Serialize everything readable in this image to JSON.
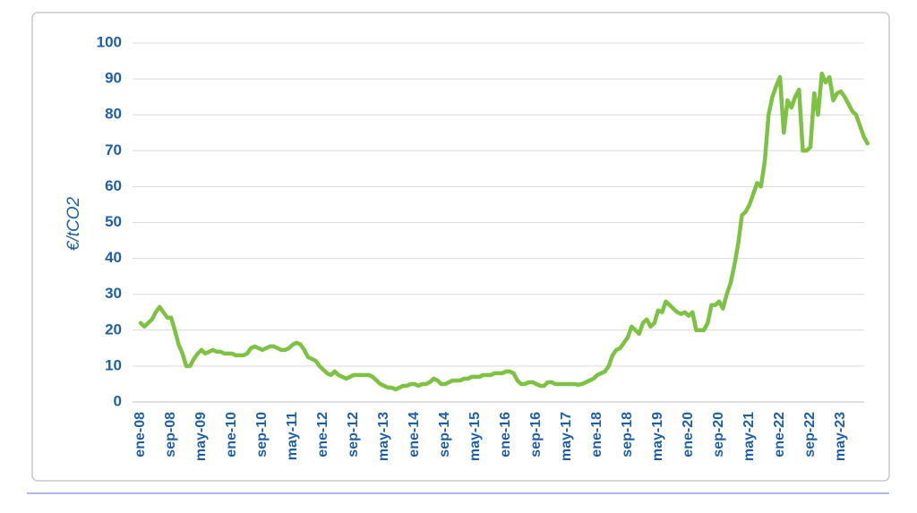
{
  "chart_data": {
    "type": "line",
    "y_label": "€/tCO2",
    "categories": [
      "ene-08",
      null,
      null,
      null,
      null,
      null,
      null,
      null,
      "sep-08",
      null,
      null,
      null,
      null,
      null,
      null,
      null,
      "may-09",
      null,
      null,
      null,
      null,
      null,
      null,
      null,
      "ene-10",
      null,
      null,
      null,
      null,
      null,
      null,
      null,
      "sep-10",
      null,
      null,
      null,
      null,
      null,
      null,
      null,
      "may-11",
      null,
      null,
      null,
      null,
      null,
      null,
      null,
      "ene-12",
      null,
      null,
      null,
      null,
      null,
      null,
      null,
      "sep-12",
      null,
      null,
      null,
      null,
      null,
      null,
      null,
      "may-13",
      null,
      null,
      null,
      null,
      null,
      null,
      null,
      "ene-14",
      null,
      null,
      null,
      null,
      null,
      null,
      null,
      "sep-14",
      null,
      null,
      null,
      null,
      null,
      null,
      null,
      "may-15",
      null,
      null,
      null,
      null,
      null,
      null,
      null,
      "ene-16",
      null,
      null,
      null,
      null,
      null,
      null,
      null,
      "sep-16",
      null,
      null,
      null,
      null,
      null,
      null,
      null,
      "may-17",
      null,
      null,
      null,
      null,
      null,
      null,
      null,
      "ene-18",
      null,
      null,
      null,
      null,
      null,
      null,
      null,
      "sep-18",
      null,
      null,
      null,
      null,
      null,
      null,
      null,
      "may-19",
      null,
      null,
      null,
      null,
      null,
      null,
      null,
      "ene-20",
      null,
      null,
      null,
      null,
      null,
      null,
      null,
      "sep-20",
      null,
      null,
      null,
      null,
      null,
      null,
      null,
      "may-21",
      null,
      null,
      null,
      null,
      null,
      null,
      null,
      "ene-22",
      null,
      null,
      null,
      null,
      null,
      null,
      null,
      "sep-22",
      null,
      null,
      null,
      null,
      null,
      null,
      null,
      "may-23",
      null,
      null,
      null,
      null,
      null,
      null,
      null
    ],
    "values": [
      22,
      21,
      22,
      23,
      25,
      26.5,
      25,
      23.5,
      23.5,
      20,
      16,
      13.5,
      10,
      10,
      12,
      13.5,
      14.5,
      13.5,
      14,
      14.5,
      14,
      14,
      13.5,
      13.5,
      13.5,
      13,
      13,
      13,
      13.5,
      15,
      15.5,
      15,
      14.5,
      15,
      15.5,
      15.5,
      15,
      14.5,
      14.5,
      15,
      16,
      16.5,
      16,
      14.5,
      12.5,
      12,
      11.5,
      10,
      9,
      8,
      7.5,
      8.5,
      7.5,
      7,
      6.5,
      7,
      7.5,
      7.5,
      7.5,
      7.5,
      7.5,
      7,
      6,
      5,
      4.5,
      4,
      4,
      3.5,
      4,
      4.5,
      4.5,
      5,
      5,
      4.5,
      5,
      5,
      5.5,
      6.5,
      6,
      5,
      5,
      5.5,
      6,
      6,
      6,
      6.5,
      6.5,
      7,
      7,
      7,
      7.5,
      7.5,
      7.5,
      8,
      8,
      8,
      8.5,
      8.5,
      8,
      6,
      5,
      5,
      5.5,
      5.5,
      5,
      4.5,
      4.5,
      5.5,
      5.5,
      5,
      5,
      5,
      5,
      5,
      5,
      4.8,
      5,
      5.5,
      6,
      6.5,
      7.5,
      8,
      8.5,
      10,
      13,
      14.5,
      15,
      16.5,
      18,
      21,
      20,
      19,
      22,
      23,
      21,
      22,
      25.5,
      25,
      28,
      27,
      26,
      25,
      24.5,
      25,
      24,
      25,
      20,
      20,
      20,
      22,
      27,
      27,
      28,
      26,
      30,
      33,
      38,
      44,
      52,
      53,
      55,
      58,
      61,
      60,
      67,
      80,
      85,
      88,
      90.5,
      75,
      84,
      82,
      85,
      87,
      70,
      70,
      71,
      86,
      80,
      91.5,
      89,
      90.5,
      84,
      86,
      86.5,
      85,
      83,
      81,
      80,
      77,
      74,
      72
    ],
    "color": "#7dc242",
    "ylim": [
      0,
      100
    ],
    "yticks": [
      0,
      10,
      20,
      30,
      40,
      50,
      60,
      70,
      80,
      90,
      100
    ],
    "grid": true
  }
}
